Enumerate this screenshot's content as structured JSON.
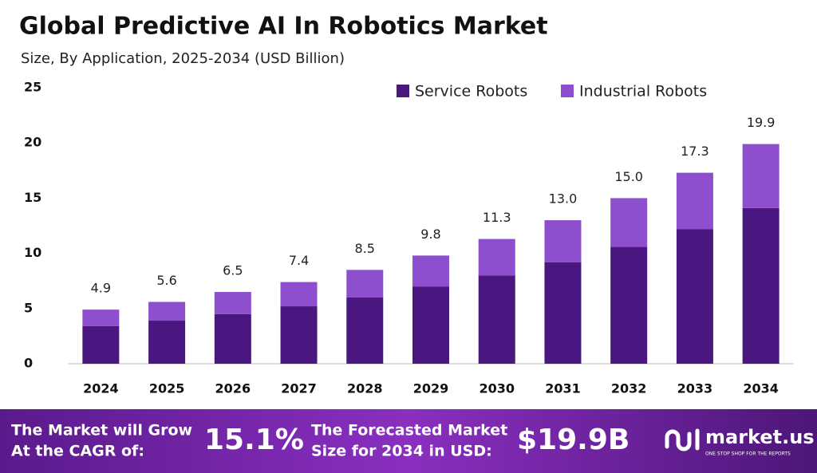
{
  "chart_data": {
    "type": "stacked_bar",
    "title": "Global Predictive AI In Robotics Market",
    "subtitle": "Size, By Application, 2025-2034 (USD Billion)",
    "categories": [
      "2024",
      "2025",
      "2026",
      "2027",
      "2028",
      "2029",
      "2030",
      "2031",
      "2032",
      "2033",
      "2034"
    ],
    "series": [
      {
        "name": "Service Robots",
        "color": "#4a1780",
        "values": [
          3.4,
          3.9,
          4.5,
          5.2,
          6.0,
          7.0,
          8.0,
          9.2,
          10.6,
          12.2,
          14.1
        ]
      },
      {
        "name": "Industrial Robots",
        "color": "#8e4fcf",
        "values": [
          1.5,
          1.7,
          2.0,
          2.2,
          2.5,
          2.8,
          3.3,
          3.8,
          4.4,
          5.1,
          5.8
        ]
      }
    ],
    "total_labels": [
      "4.9",
      "5.6",
      "6.5",
      "7.4",
      "8.5",
      "9.8",
      "11.3",
      "13.0",
      "15.0",
      "17.3",
      "19.9"
    ],
    "ylim": [
      0,
      25
    ],
    "yticks": [
      0,
      5,
      10,
      15,
      20,
      25
    ],
    "grid": false,
    "legend": "top-right"
  },
  "footer": {
    "cagr_text": [
      "The Market will Grow",
      "At the CAGR of:"
    ],
    "cagr": "15.1%",
    "forecast_text": [
      "The Forecasted Market",
      "Size for 2034 in USD:"
    ],
    "forecast": "$19.9B",
    "brand": "market.us",
    "tagline": "ONE STOP SHOP FOR THE REPORTS"
  }
}
